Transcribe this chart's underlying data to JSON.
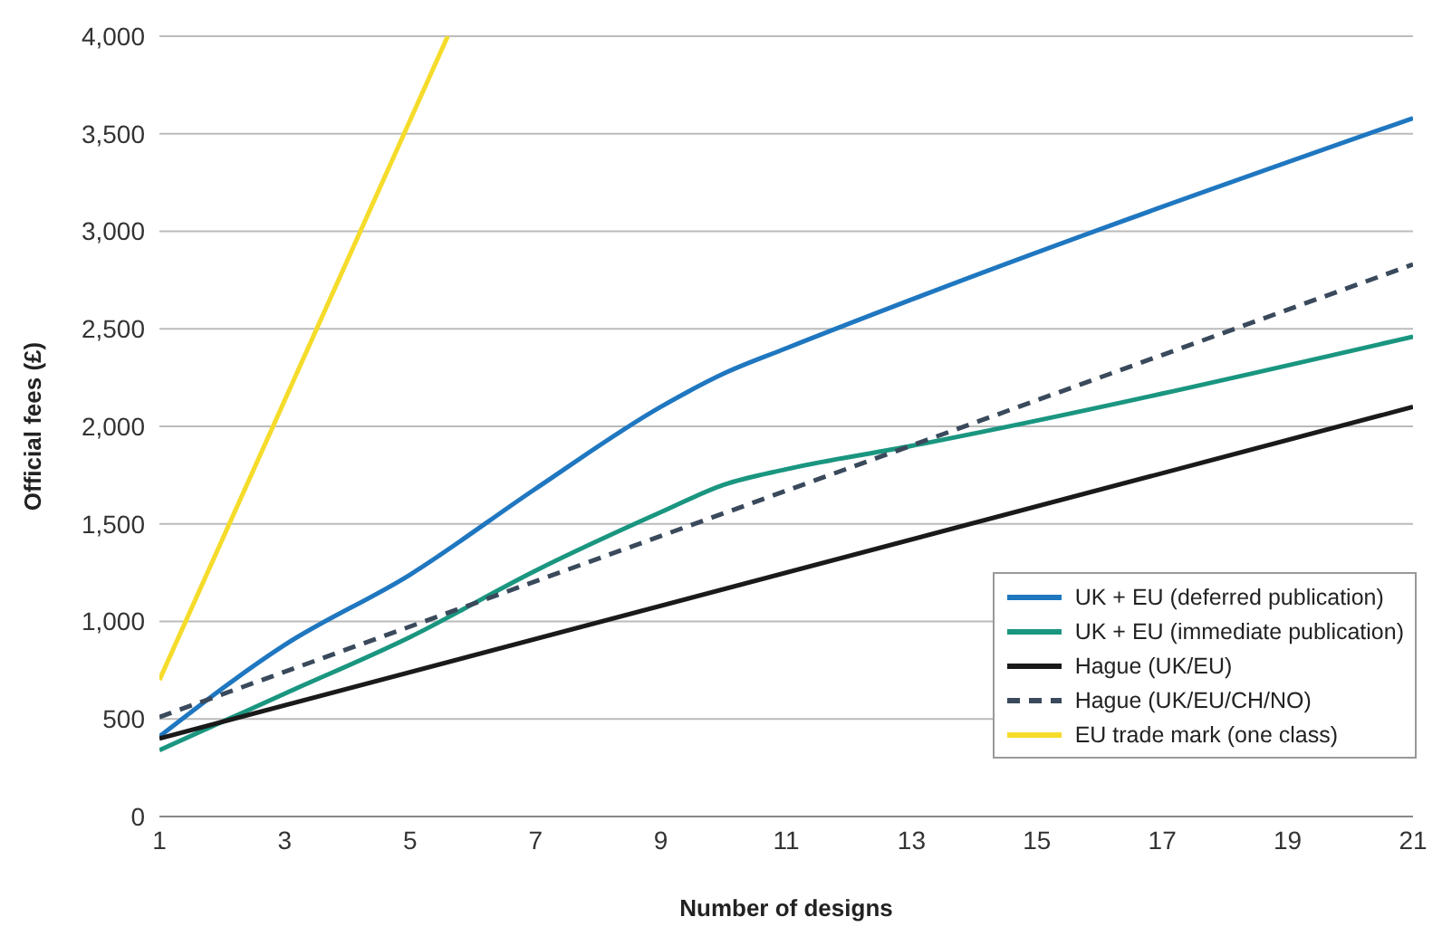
{
  "chart_data": {
    "type": "line",
    "xlabel": "Number of designs",
    "ylabel": "Official fees (£)",
    "xlim": [
      1,
      21
    ],
    "xticks": [
      1,
      3,
      5,
      7,
      9,
      11,
      13,
      15,
      17,
      19,
      21
    ],
    "ylim": [
      0,
      4000
    ],
    "yticks": [
      0,
      500,
      {
        "value": 1000,
        "label": "1,000"
      },
      {
        "value": 1500,
        "label": "1,500"
      },
      {
        "value": 2000,
        "label": "2,000"
      },
      {
        "value": 2500,
        "label": "2,500"
      },
      {
        "value": 3000,
        "label": "3,000"
      },
      {
        "value": 3500,
        "label": "3,500"
      },
      {
        "value": 4000,
        "label": "4,000"
      }
    ],
    "grid": "y",
    "legend": "bottom right",
    "marker": "none",
    "series": [
      {
        "name": "UK + EU (deferred publication)",
        "color": "#1f77c0",
        "x": [
          1,
          3,
          5,
          7,
          9,
          10,
          11,
          13,
          21
        ],
        "values": [
          410,
          880,
          1240,
          1680,
          2100,
          2270,
          2400,
          2650,
          3580
        ]
      },
      {
        "name": "UK + EU (immediate publication)",
        "color": "#1a9680",
        "x": [
          1,
          3,
          5,
          7,
          9,
          10,
          11,
          13,
          21
        ],
        "values": [
          340,
          630,
          920,
          1260,
          1560,
          1700,
          1780,
          1900,
          2460
        ]
      },
      {
        "name": "Hague (UK/EU)",
        "color": "#1a1a1a",
        "x": [
          1,
          21
        ],
        "values": [
          400,
          2100
        ]
      },
      {
        "name": "Hague (UK/EU/CH/NO)",
        "color": "#3a4a5c",
        "x": [
          1,
          21
        ],
        "values": [
          510,
          2830
        ],
        "line_style": "dashed"
      },
      {
        "name": "EU trade mark (one class)",
        "color": "#f5dc2a",
        "x": [
          1,
          5.6
        ],
        "values": [
          700,
          4000
        ]
      }
    ]
  }
}
